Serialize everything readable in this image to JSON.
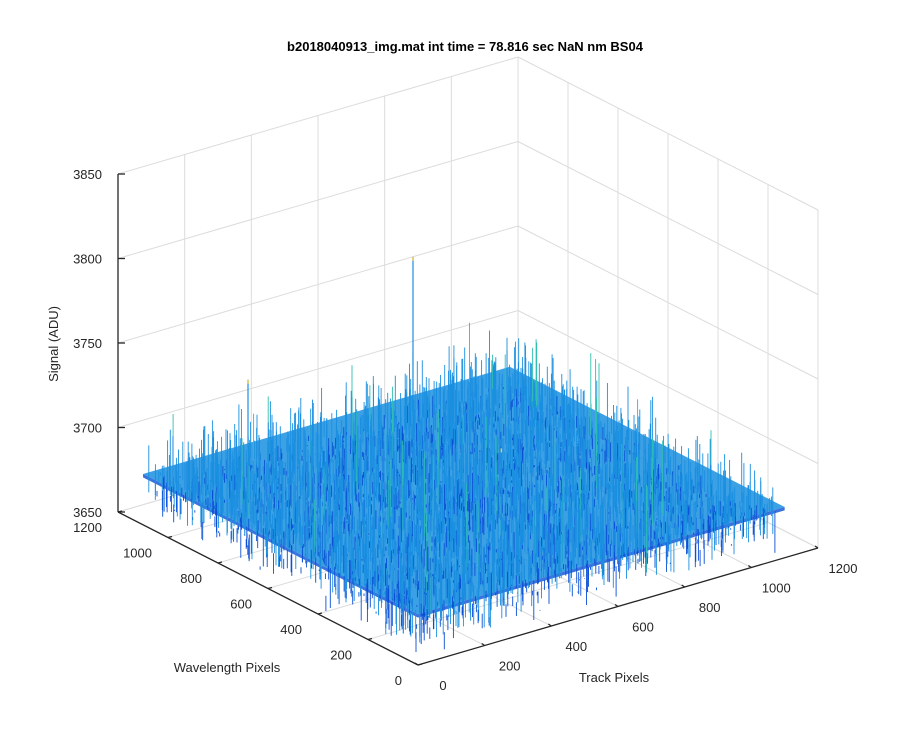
{
  "chart_data": {
    "type": "surface",
    "title": "b2018040913_img.mat int time = 78.816 sec  NaN nm BS04",
    "xlabel": "Track Pixels",
    "ylabel": "Wavelength Pixels",
    "zlabel": "Signal (ADU)",
    "xlim": [
      0,
      1200
    ],
    "ylim": [
      0,
      1200
    ],
    "zlim": [
      3650,
      3850
    ],
    "x_ticks": [
      "0",
      "200",
      "400",
      "600",
      "800",
      "1000",
      "1200"
    ],
    "y_ticks": [
      "0",
      "200",
      "400",
      "600",
      "800",
      "1000",
      "1200"
    ],
    "z_ticks": [
      "3650",
      "3700",
      "3750",
      "3800",
      "3850"
    ],
    "grid": true,
    "colormap": "parula",
    "surface": {
      "x_range": [
        0,
        1100
      ],
      "y_range": [
        0,
        1100
      ],
      "mean_signal": 3680,
      "noise_range": [
        3650,
        3750
      ],
      "spike_max": 3795
    },
    "colors": {
      "low": "#0a4fd6",
      "mid": "#1a8fe0",
      "high": "#2fbfb0",
      "spike": "#e6c94a"
    }
  }
}
